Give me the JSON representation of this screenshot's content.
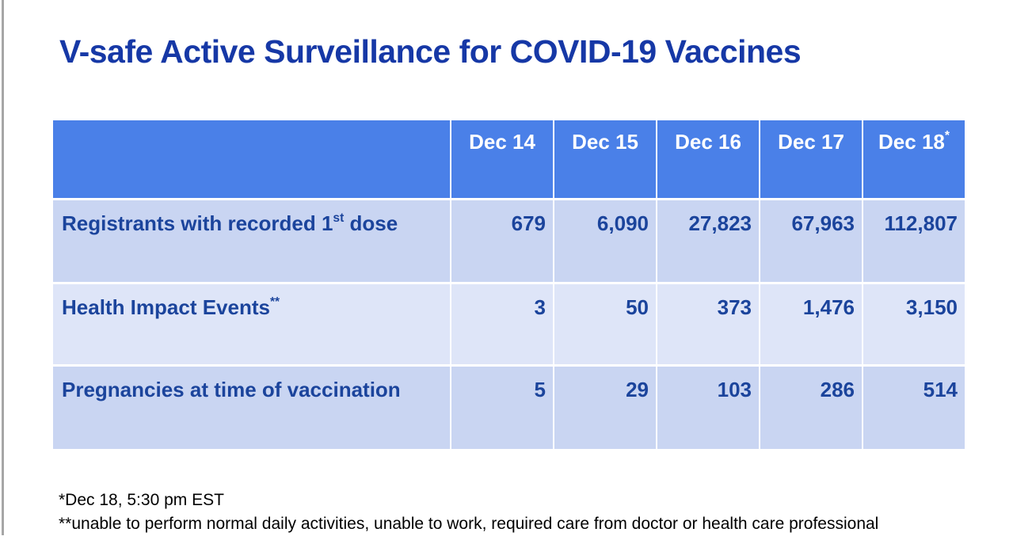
{
  "page": {
    "title": "V-safe Active Surveillance for COVID-19 Vaccines"
  },
  "table": {
    "header": {
      "corner": "",
      "cols": [
        "Dec 14",
        "Dec 15",
        "Dec 16",
        "Dec 17",
        "Dec 18"
      ],
      "last_col_sup": "*"
    },
    "rows": [
      {
        "label_prefix": "Registrants with recorded 1",
        "label_sup": "st",
        "label_suffix": " dose",
        "values": [
          "679",
          "6,090",
          "27,823",
          "67,963",
          "112,807"
        ]
      },
      {
        "label_prefix": "Health Impact Events",
        "label_sup": "**",
        "label_suffix": "",
        "values": [
          "3",
          "50",
          "373",
          "1,476",
          "3,150"
        ]
      },
      {
        "label_prefix": "Pregnancies at time of vaccination",
        "label_sup": "",
        "label_suffix": "",
        "values": [
          "5",
          "29",
          "103",
          "286",
          "514"
        ]
      }
    ]
  },
  "footnotes": [
    "*Dec 18, 5:30 pm EST",
    "**unable to perform normal daily activities, unable to work, required care from doctor or health care professional"
  ],
  "colors": {
    "header_bg": "#4a80e8",
    "row_odd_bg": "#c9d5f2",
    "row_even_bg": "#dee5f8",
    "title_text": "#1638a6",
    "cell_text": "#1b449c",
    "header_text": "#ffffff",
    "footnote_text": "#000000",
    "left_edge_line": "#a6a6a6"
  }
}
